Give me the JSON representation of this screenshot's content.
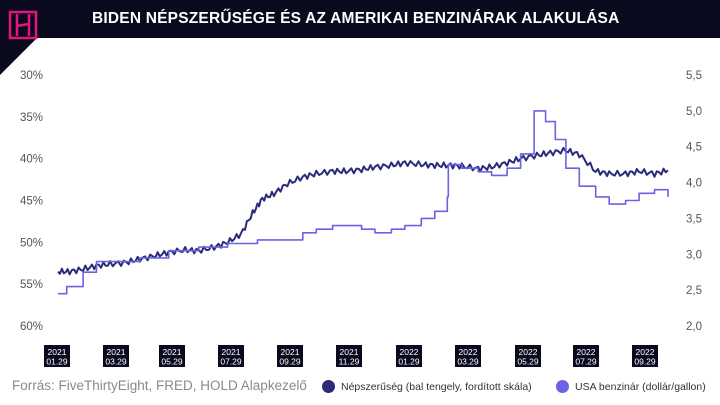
{
  "header": {
    "title": "BIDEN NÉPSZERŰSÉGE ÉS AZ AMERIKAI BENZINÁRAK ALAKULÁSA"
  },
  "colors": {
    "header_bg": "#0a0a1e",
    "logo": "#e0157f",
    "popularity": "#2b2b7a",
    "gas": "#6b63e0"
  },
  "footer": {
    "source": "Forrás: FiveThirtyEight, FRED, HOLD Alapkezelő"
  },
  "legend": [
    {
      "label": "Népszerűség (bal tengely, fordított skála)",
      "color": "#2b2b7a"
    },
    {
      "label": "USA benzinár (dollár/gallon)",
      "color": "#6b63e0"
    }
  ],
  "chart_data": {
    "type": "line",
    "title": "BIDEN NÉPSZERŰSÉGE ÉS AZ AMERIKAI BENZINÁRAK ALAKULÁSA",
    "x_ticks": [
      {
        "year": "2021",
        "date": "01.29"
      },
      {
        "year": "2021",
        "date": "03.29"
      },
      {
        "year": "2021",
        "date": "05.29"
      },
      {
        "year": "2021",
        "date": "07.29"
      },
      {
        "year": "2021",
        "date": "09.29"
      },
      {
        "year": "2021",
        "date": "11.29"
      },
      {
        "year": "2022",
        "date": "01.29"
      },
      {
        "year": "2022",
        "date": "03.29"
      },
      {
        "year": "2022",
        "date": "05.29"
      },
      {
        "year": "2022",
        "date": "07.29"
      },
      {
        "year": "2022",
        "date": "09.29"
      }
    ],
    "left_axis": {
      "ticks": [
        "30%",
        "35%",
        "40%",
        "45%",
        "50%",
        "55%",
        "60%"
      ],
      "range": [
        30,
        60
      ],
      "inverted": true
    },
    "right_axis": {
      "ticks": [
        "5,5",
        "5,0",
        "4,5",
        "4,0",
        "3,5",
        "3,0",
        "2,5",
        "2,0"
      ],
      "range": [
        2.0,
        5.5
      ]
    },
    "grid": false,
    "series": [
      {
        "name": "Népszerűség (bal tengely, fordított skála)",
        "axis": "left",
        "x": [
          "2021-01-20",
          "2021-02-01",
          "2021-02-15",
          "2021-03-01",
          "2021-03-15",
          "2021-04-01",
          "2021-04-15",
          "2021-05-01",
          "2021-05-15",
          "2021-06-01",
          "2021-06-15",
          "2021-07-01",
          "2021-07-15",
          "2021-07-29",
          "2021-08-10",
          "2021-08-20",
          "2021-09-01",
          "2021-09-15",
          "2021-10-01",
          "2021-10-15",
          "2021-11-01",
          "2021-11-15",
          "2021-12-01",
          "2021-12-15",
          "2022-01-01",
          "2022-01-15",
          "2022-02-01",
          "2022-02-15",
          "2022-03-01",
          "2022-03-15",
          "2022-04-01",
          "2022-04-15",
          "2022-05-01",
          "2022-05-15",
          "2022-06-01",
          "2022-06-15",
          "2022-07-01",
          "2022-07-15",
          "2022-08-01",
          "2022-08-15",
          "2022-09-01",
          "2022-09-15",
          "2022-10-01",
          "2022-10-15"
        ],
        "values": [
          53.5,
          53.5,
          53.2,
          52.8,
          52.6,
          52.4,
          52.0,
          51.6,
          51.2,
          50.9,
          51.0,
          50.6,
          50.0,
          49.0,
          46.5,
          44.8,
          44.2,
          43.0,
          42.2,
          41.8,
          41.5,
          41.5,
          41.3,
          41.0,
          40.8,
          40.5,
          40.7,
          40.8,
          40.8,
          40.9,
          41.2,
          41.0,
          40.5,
          40.0,
          39.6,
          39.3,
          39.0,
          39.5,
          41.5,
          41.8,
          41.8,
          41.5,
          41.8,
          41.4
        ]
      },
      {
        "name": "USA benzinár (dollár/gallon)",
        "axis": "right",
        "x": [
          "2021-01-20",
          "2021-01-29",
          "2021-02-15",
          "2021-03-01",
          "2021-03-15",
          "2021-04-15",
          "2021-05-15",
          "2021-06-15",
          "2021-07-15",
          "2021-08-15",
          "2021-09-15",
          "2021-10-01",
          "2021-10-15",
          "2021-11-01",
          "2021-11-15",
          "2021-12-01",
          "2021-12-15",
          "2022-01-01",
          "2022-01-15",
          "2022-02-01",
          "2022-02-15",
          "2022-02-28",
          "2022-03-01",
          "2022-03-15",
          "2022-04-01",
          "2022-04-15",
          "2022-05-01",
          "2022-05-15",
          "2022-05-29",
          "2022-06-10",
          "2022-06-20",
          "2022-07-01",
          "2022-07-15",
          "2022-08-01",
          "2022-08-15",
          "2022-09-01",
          "2022-09-15",
          "2022-10-01",
          "2022-10-15"
        ],
        "values": [
          2.45,
          2.55,
          2.75,
          2.9,
          2.9,
          2.95,
          3.05,
          3.1,
          3.15,
          3.2,
          3.2,
          3.3,
          3.35,
          3.4,
          3.4,
          3.35,
          3.3,
          3.35,
          3.4,
          3.5,
          3.6,
          3.8,
          4.25,
          4.2,
          4.15,
          4.1,
          4.2,
          4.4,
          5.0,
          4.85,
          4.6,
          4.2,
          3.95,
          3.8,
          3.7,
          3.75,
          3.85,
          3.9,
          3.8
        ]
      }
    ]
  }
}
